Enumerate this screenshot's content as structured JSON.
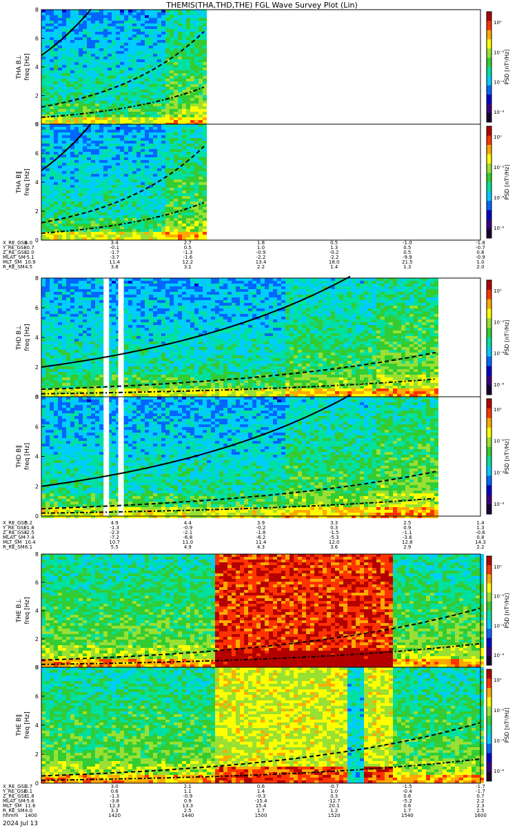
{
  "title": "THEMIS(THA,THD,THE) FGL Wave Survey Plot (Lin)",
  "colorbar_label": "PSD [nT²/Hz]",
  "colorbar_ticks": [
    "10⁰",
    "10⁻²",
    "10⁻⁴",
    "10⁻⁶"
  ],
  "colorbar_ticks_top": [
    "10⁰",
    "10⁻²",
    "10⁻⁴",
    "10⁻⁶"
  ],
  "panels": [
    {
      "probe": "THA",
      "comp": "B⊥",
      "ylabel": "freq [Hz]"
    },
    {
      "probe": "THA",
      "comp": "B∥",
      "ylabel": "freq [Hz]"
    },
    {
      "probe": "THD",
      "comp": "B⊥",
      "ylabel": "freq [Hz]"
    },
    {
      "probe": "THD",
      "comp": "B∥",
      "ylabel": "freq [Hz]"
    },
    {
      "probe": "THE",
      "comp": "B⊥",
      "ylabel": "freq [Hz]"
    },
    {
      "probe": "THE",
      "comp": "B∥",
      "ylabel": "freq [Hz]"
    }
  ],
  "freq_ticks": [
    "0",
    "2",
    "4",
    "6",
    "8"
  ],
  "ephem_labels": [
    "X_RE_GSE",
    "Y_RE_GSE",
    "Z_RE_GSE",
    "MLAT_SM",
    "MLT_SM",
    "R_RE_SM"
  ],
  "ephem_groups": [
    {
      "probe": "THA",
      "columns": [
        [
          "4.0",
          "-0.7",
          "-2.0",
          "-5.1",
          "10.9",
          "4.5"
        ],
        [
          "3.4",
          "-0.1",
          "-1.7",
          "-3.7",
          "11.4",
          "3.8"
        ],
        [
          "2.7",
          "0.5",
          "-1.3",
          "-1.6",
          "12.2",
          "3.1"
        ],
        [
          "1.8",
          "1.0",
          "-0.9",
          "-2.2",
          "13.4",
          "2.2"
        ],
        [
          "0.5",
          "1.3",
          "-0.2",
          "-2.2",
          "18.0",
          "1.4"
        ],
        [
          "-1.0",
          "0.5",
          "0.5",
          "-9.9",
          "21.5",
          "1.3"
        ],
        [
          "-1.8",
          "-0.7",
          "0.8",
          "-0.9",
          "1.0",
          "2.0"
        ]
      ]
    },
    {
      "probe": "THD",
      "columns": [
        [
          "5.2",
          "-1.8",
          "-2.5",
          "-7.4",
          "10.4",
          "6.1"
        ],
        [
          "4.9",
          "-1.3",
          "-2.3",
          "-7.2",
          "10.7",
          "5.5"
        ],
        [
          "4.4",
          "-0.9",
          "-2.1",
          "-6.8",
          "11.0",
          "4.9"
        ],
        [
          "3.9",
          "-0.2",
          "-1.8",
          "-6.2",
          "11.4",
          "4.3"
        ],
        [
          "3.3",
          "0.3",
          "-1.5",
          "-5.3",
          "12.0",
          "3.6"
        ],
        [
          "2.5",
          "0.9",
          "-1.1",
          "-3.6",
          "12.8",
          "2.9"
        ],
        [
          "1.4",
          "1.3",
          "-0.6",
          "0.8",
          "14.3",
          "2.2"
        ]
      ]
    },
    {
      "probe": "THE",
      "columns": [
        [
          "3.7",
          "0.1",
          "-1.8",
          "-5.6",
          "11.6",
          "4.0"
        ],
        [
          "3.0",
          "0.6",
          "-1.3",
          "-3.8",
          "12.3",
          "3.3"
        ],
        [
          "2.1",
          "1.1",
          "-0.9",
          "0.9",
          "13.3",
          "2.5"
        ],
        [
          "0.6",
          "1.4",
          "-0.3",
          "-15.4",
          "15.4",
          "1.7"
        ],
        [
          "-0.7",
          "1.0",
          "0.3",
          "-12.7",
          "20.1",
          "1.2"
        ],
        [
          "-1.5",
          "-0.4",
          "0.6",
          "-5.2",
          "0.6",
          "1.7"
        ],
        [
          "-1.7",
          "-1.7",
          "0.7",
          "2.2",
          "2.3",
          "2.5"
        ]
      ]
    }
  ],
  "time_row_label": "hhmm",
  "time_ticks": [
    "1400",
    "1420",
    "1440",
    "1500",
    "1520",
    "1540",
    "1600"
  ],
  "date": "2024 Jul 13",
  "colors": {
    "colormap": [
      "#1a0033",
      "#3a0080",
      "#0000cc",
      "#0066ff",
      "#00ccff",
      "#00e0a0",
      "#33cc33",
      "#99e033",
      "#ffff00",
      "#ffaa00",
      "#ff3300",
      "#b40000"
    ],
    "curve": "#000000",
    "data_gap": "#ffffff",
    "cursor_line": "#ff6600"
  },
  "chart_data": {
    "type": "heatmap",
    "title": "THEMIS(THA,THD,THE) FGL Wave Survey Plot (Lin)",
    "x_axis": {
      "label": "hhmm",
      "range": [
        "1400",
        "1600"
      ],
      "ticks": [
        "1400",
        "1420",
        "1440",
        "1500",
        "1520",
        "1540",
        "1600"
      ]
    },
    "y_axis": {
      "label": "freq [Hz]",
      "range": [
        0,
        8
      ],
      "ticks": [
        0,
        2,
        4,
        6,
        8
      ]
    },
    "color_axis": {
      "label": "PSD [nT²/Hz]",
      "scale": "log",
      "range": [
        1e-07,
        10.0
      ]
    },
    "overlays": [
      "solid line (gyrofrequency)",
      "dashed line",
      "dash-dot line"
    ],
    "panels": [
      {
        "probe": "THA",
        "component": "B⊥",
        "data_coverage": [
          "1400",
          "1445"
        ]
      },
      {
        "probe": "THA",
        "component": "B∥",
        "data_coverage": [
          "1400",
          "1445"
        ]
      },
      {
        "probe": "THD",
        "component": "B⊥",
        "data_coverage": [
          "1400",
          "1548"
        ],
        "gaps": [
          [
            "1417",
            "1418"
          ],
          [
            "1421",
            "1422"
          ]
        ]
      },
      {
        "probe": "THD",
        "component": "B∥",
        "data_coverage": [
          "1400",
          "1548"
        ],
        "gaps": [
          [
            "1417",
            "1418"
          ],
          [
            "1421",
            "1422"
          ]
        ]
      },
      {
        "probe": "THE",
        "component": "B⊥",
        "data_coverage": [
          "1400",
          "1600"
        ],
        "high_power_interval": [
          "1447",
          "1535"
        ]
      },
      {
        "probe": "THE",
        "component": "B∥",
        "data_coverage": [
          "1400",
          "1600"
        ],
        "high_power_interval": [
          "1447",
          "1535"
        ]
      }
    ]
  }
}
